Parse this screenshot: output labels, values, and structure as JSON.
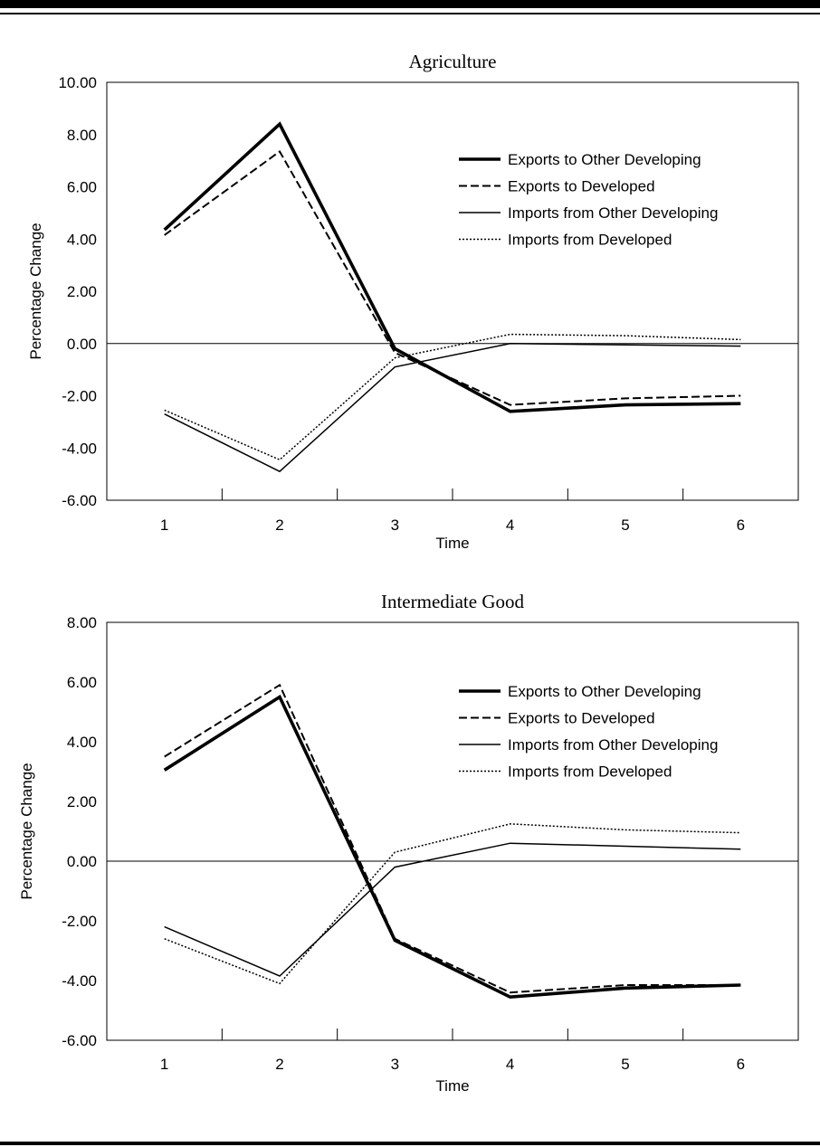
{
  "chart_data": [
    {
      "type": "line",
      "title": "Agriculture",
      "xlabel": "Time",
      "ylabel": "Percentage Change",
      "x": [
        1,
        2,
        3,
        4,
        5,
        6
      ],
      "ylim": [
        -6,
        10
      ],
      "yticks": [
        "10.00",
        "8.00",
        "6.00",
        "4.00",
        "2.00",
        "0.00",
        "-2.00",
        "-4.00",
        "-6.00"
      ],
      "legend_position": "top-right",
      "series": [
        {
          "name": "Exports to Other Developing",
          "style": "thick",
          "values": [
            4.35,
            8.4,
            -0.2,
            -2.6,
            -2.35,
            -2.3
          ]
        },
        {
          "name": "Exports to Developed",
          "style": "dashed",
          "values": [
            4.15,
            7.35,
            -0.35,
            -2.35,
            -2.1,
            -2.0
          ]
        },
        {
          "name": "Imports from Other Developing",
          "style": "thin",
          "values": [
            -2.7,
            -4.9,
            -0.9,
            0.0,
            -0.05,
            -0.1
          ]
        },
        {
          "name": "Imports from Developed",
          "style": "dotted",
          "values": [
            -2.55,
            -4.45,
            -0.55,
            0.35,
            0.3,
            0.15
          ]
        }
      ]
    },
    {
      "type": "line",
      "title": "Intermediate Good",
      "xlabel": "Time",
      "ylabel": "Percentage Change",
      "x": [
        1,
        2,
        3,
        4,
        5,
        6
      ],
      "ylim": [
        -6,
        8
      ],
      "yticks": [
        "8.00",
        "6.00",
        "4.00",
        "2.00",
        "0.00",
        "-2.00",
        "-4.00",
        "-6.00"
      ],
      "legend_position": "top-right",
      "series": [
        {
          "name": "Exports to Other Developing",
          "style": "thick",
          "values": [
            3.05,
            5.5,
            -2.65,
            -4.55,
            -4.25,
            -4.15
          ]
        },
        {
          "name": "Exports to Developed",
          "style": "dashed",
          "values": [
            3.5,
            5.9,
            -2.6,
            -4.4,
            -4.15,
            -4.15
          ]
        },
        {
          "name": "Imports from Other Developing",
          "style": "thin",
          "values": [
            -2.2,
            -3.85,
            -0.2,
            0.6,
            0.5,
            0.4
          ]
        },
        {
          "name": "Imports from Developed",
          "style": "dotted",
          "values": [
            -2.6,
            -4.1,
            0.3,
            1.25,
            1.05,
            0.95
          ]
        }
      ]
    }
  ]
}
